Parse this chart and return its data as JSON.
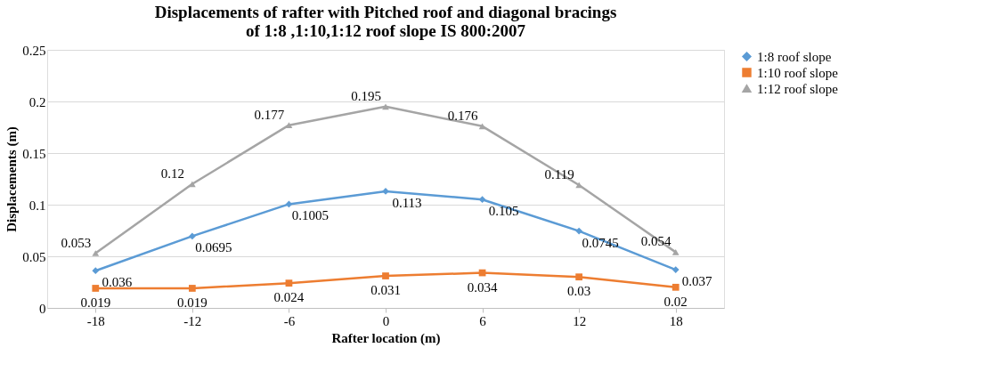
{
  "chart_data": {
    "type": "line",
    "title": "Displacements of rafter with Pitched roof and diagonal bracings\nof 1:8 ,1:10,1:12 roof slope IS 800:2007",
    "xlabel": "Rafter location (m)",
    "ylabel": "Displacements (m)",
    "categories": [
      "-18",
      "-12",
      "-6",
      "0",
      "6",
      "12",
      "18"
    ],
    "series": [
      {
        "name": "1:8 roof slope",
        "color": "#5b9bd5",
        "marker": "diamond",
        "values": [
          0.036,
          0.0695,
          0.1005,
          0.113,
          0.105,
          0.0745,
          0.037
        ]
      },
      {
        "name": "1:10 roof slope",
        "color": "#ed7d31",
        "marker": "square",
        "values": [
          0.019,
          0.019,
          0.024,
          0.031,
          0.034,
          0.03,
          0.02
        ]
      },
      {
        "name": "1:12 roof slope",
        "color": "#a5a5a5",
        "marker": "triangle",
        "values": [
          0.053,
          0.12,
          0.177,
          0.195,
          0.176,
          0.119,
          0.054
        ]
      }
    ],
    "ylim": [
      0,
      0.25
    ],
    "yticks": [
      0,
      0.05,
      0.1,
      0.15,
      0.2,
      0.25
    ],
    "grid": "y",
    "legend": "right",
    "data_labels": true,
    "line_style": "solid"
  }
}
